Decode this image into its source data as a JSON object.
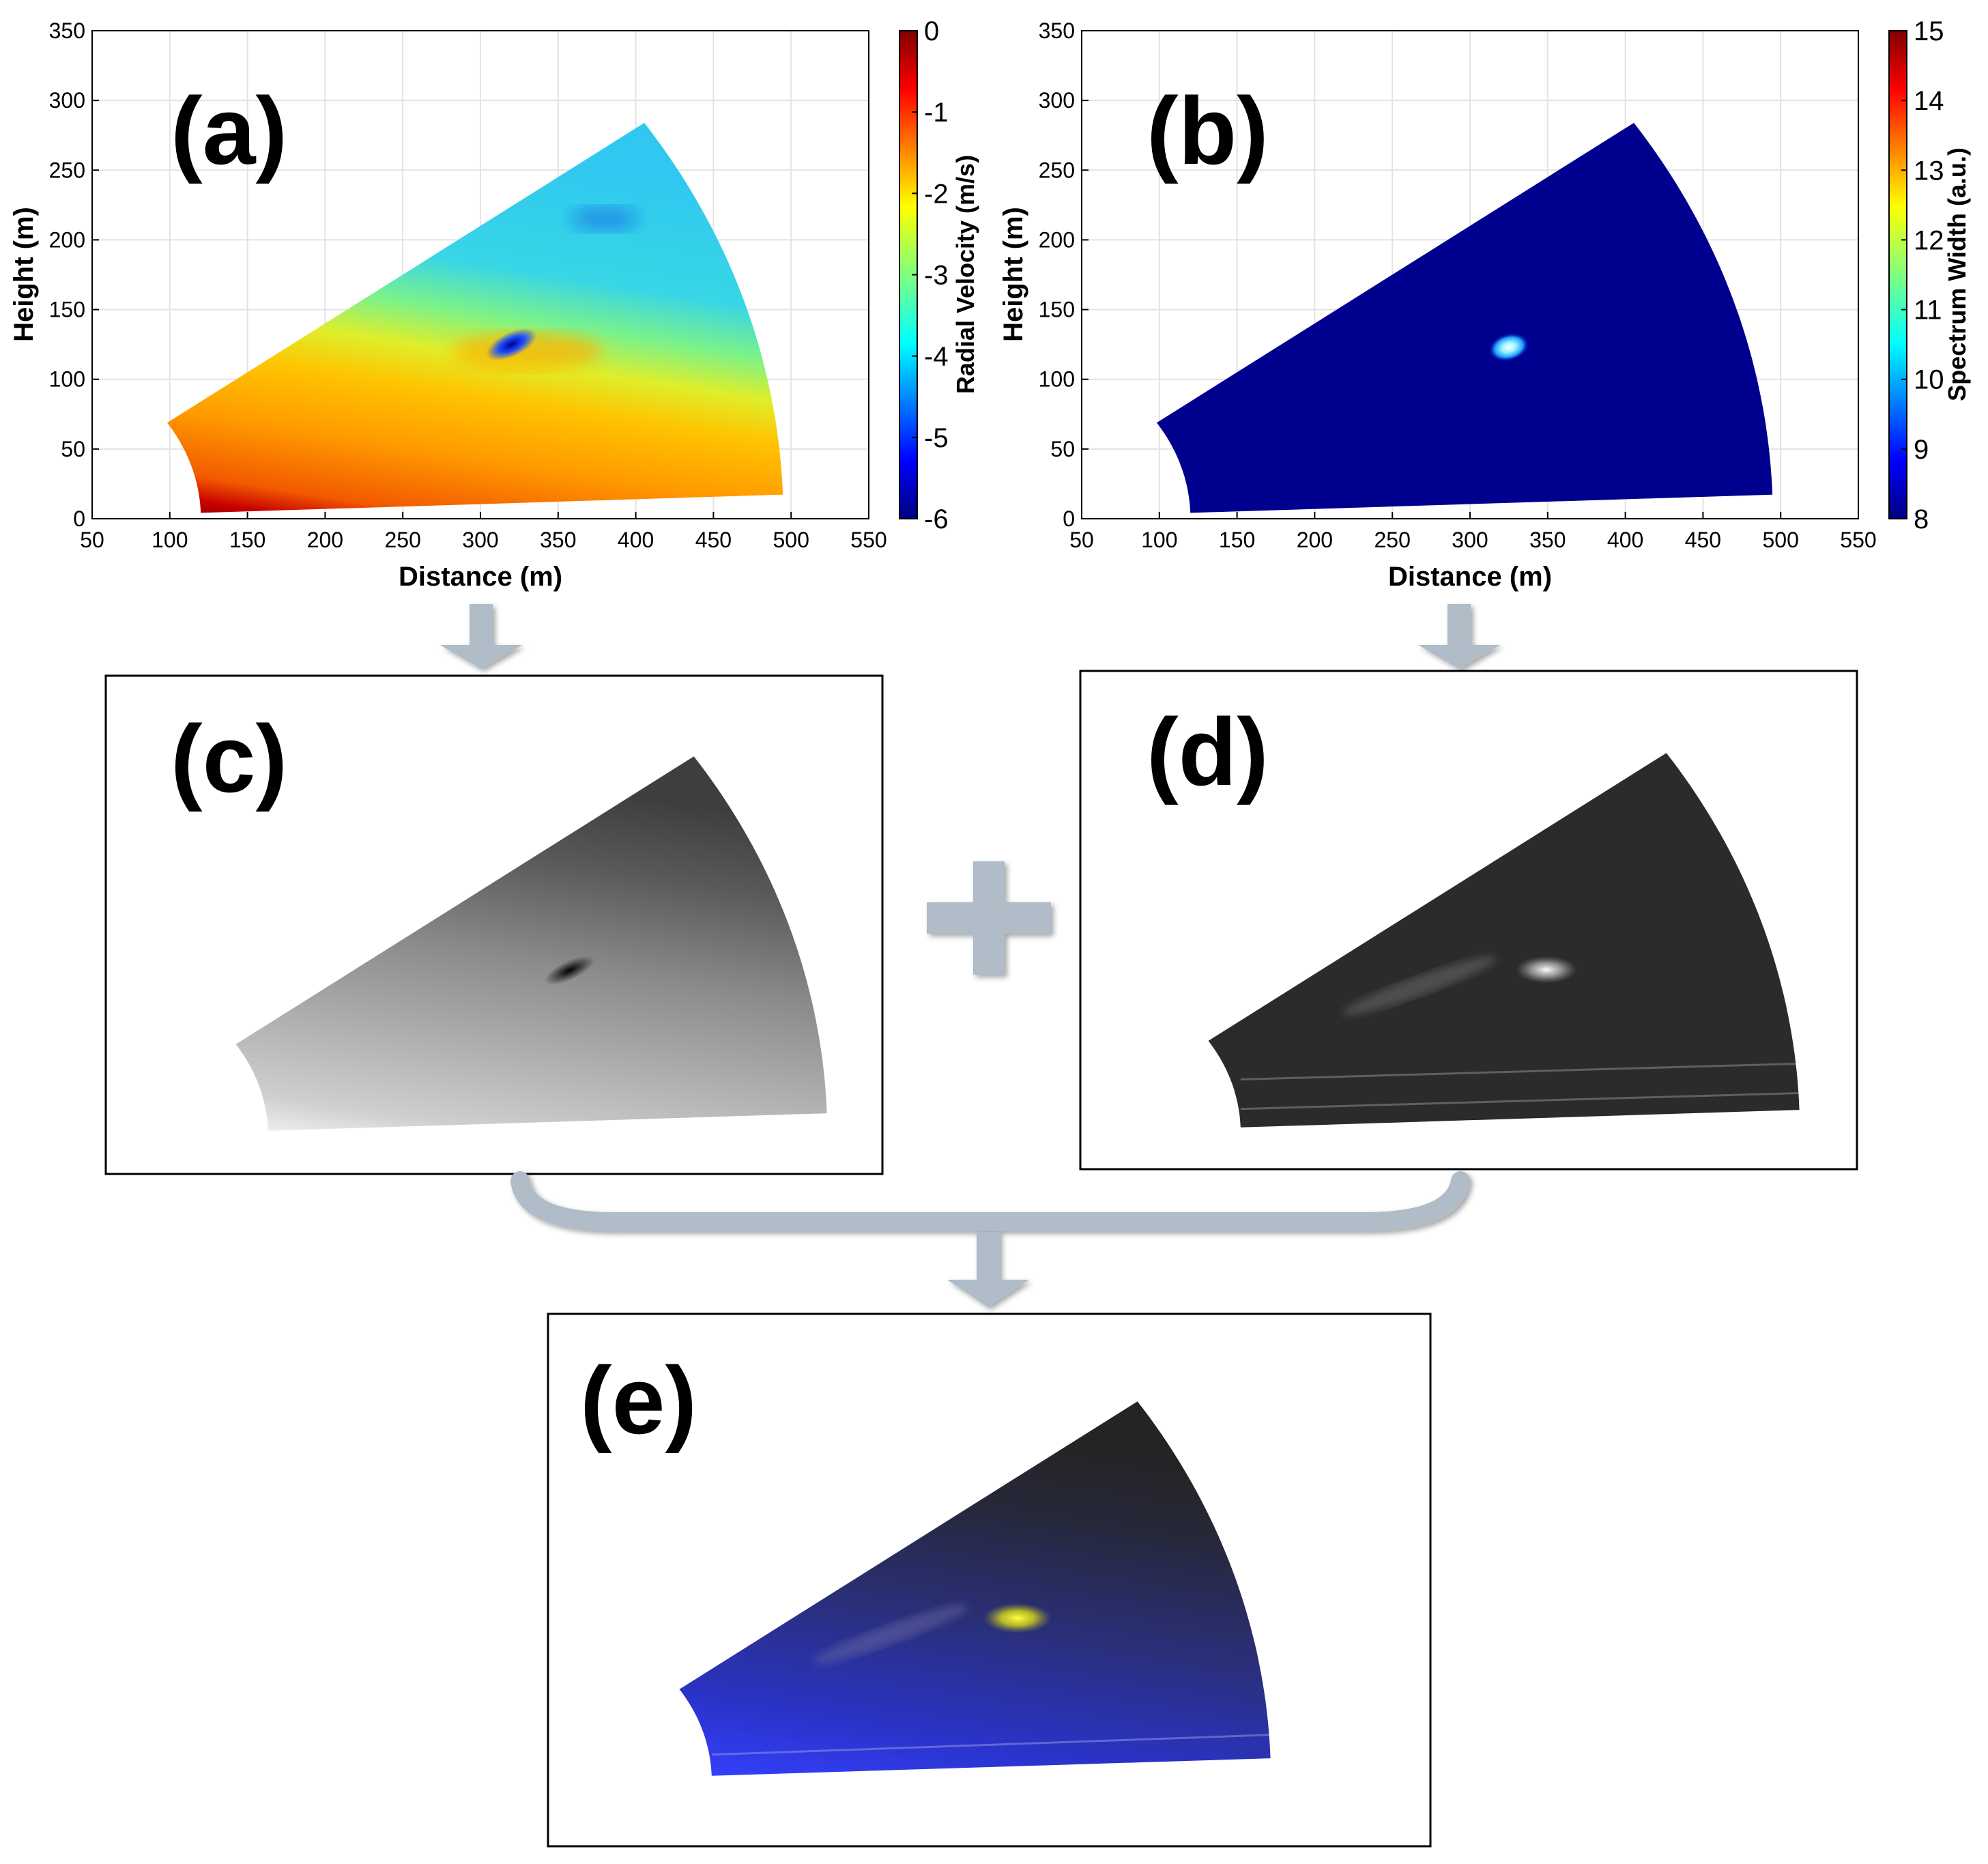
{
  "chart_data": [
    {
      "panel": "(a)",
      "type": "heatmap",
      "xlabel": "Distance (m)",
      "ylabel": "Height (m)",
      "xlim": [
        50,
        550
      ],
      "ylim": [
        0,
        350
      ],
      "xticks": [
        50,
        100,
        150,
        200,
        250,
        300,
        350,
        400,
        450,
        500,
        550
      ],
      "yticks": [
        0,
        50,
        100,
        150,
        200,
        250,
        300,
        350
      ],
      "grid": true,
      "colorbar": {
        "label": "Radial Velocity (m/s)",
        "range": [
          -6,
          0
        ],
        "ticks": [
          0,
          -1,
          -2,
          -3,
          -4,
          -5,
          -6
        ],
        "colormap": "jet"
      },
      "sector": {
        "r_min": 120,
        "r_max": 495,
        "elev_min_deg": 2,
        "elev_max_deg": 35
      },
      "features": [
        {
          "name": "vortex core",
          "x": 320,
          "y": 125,
          "value": -6
        }
      ]
    },
    {
      "panel": "(b)",
      "type": "heatmap",
      "xlabel": "Distance (m)",
      "ylabel": "Height (m)",
      "xlim": [
        50,
        550
      ],
      "ylim": [
        0,
        350
      ],
      "xticks": [
        50,
        100,
        150,
        200,
        250,
        300,
        350,
        400,
        450,
        500,
        550
      ],
      "yticks": [
        0,
        50,
        100,
        150,
        200,
        250,
        300,
        350
      ],
      "grid": true,
      "colorbar": {
        "label": "Spectrum Width (a.u.)",
        "range": [
          8,
          15
        ],
        "ticks": [
          8,
          9,
          10,
          11,
          12,
          13,
          14,
          15
        ],
        "colormap": "jet"
      },
      "sector": {
        "r_min": 120,
        "r_max": 495,
        "elev_min_deg": 2,
        "elev_max_deg": 35
      },
      "background_value": 8,
      "features": [
        {
          "name": "high spectrum width",
          "x": 325,
          "y": 123,
          "value": 10.5
        }
      ]
    }
  ],
  "panels": {
    "a": "(a)",
    "b": "(b)",
    "c": "(c)",
    "d": "(d)",
    "e": "(e)"
  },
  "colors": {
    "arrow": "#b0bcc7",
    "panel_e_base": "#1e2ad8",
    "panel_e_highlight": "#ffff1a",
    "b_background": "#00008f"
  }
}
